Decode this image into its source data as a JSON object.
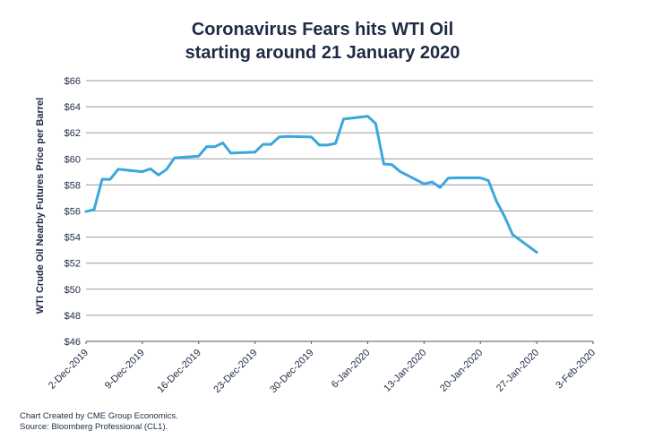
{
  "chart_data": {
    "type": "line",
    "title_line1": "Coronavirus Fears hits WTI Oil",
    "title_line2": "starting around 21 January 2020",
    "ylabel": "WTI Crude Oil Nearby Futures Price per Barrel",
    "xlabel": "",
    "ylim": [
      46,
      66
    ],
    "y_ticks": [
      "$46",
      "$48",
      "$50",
      "$52",
      "$54",
      "$56",
      "$58",
      "$60",
      "$62",
      "$64",
      "$66"
    ],
    "x_range": [
      "2019-12-02",
      "2020-02-03"
    ],
    "x_ticks": [
      {
        "date": "2019-12-02",
        "label": "2-Dec-2019"
      },
      {
        "date": "2019-12-09",
        "label": "9-Dec-2019"
      },
      {
        "date": "2019-12-16",
        "label": "16-Dec-2019"
      },
      {
        "date": "2019-12-23",
        "label": "23-Dec-2019"
      },
      {
        "date": "2019-12-30",
        "label": "30-Dec-2019"
      },
      {
        "date": "2020-01-06",
        "label": "6-Jan-2020"
      },
      {
        "date": "2020-01-13",
        "label": "13-Jan-2020"
      },
      {
        "date": "2020-01-20",
        "label": "20-Jan-2020"
      },
      {
        "date": "2020-01-27",
        "label": "27-Jan-2020"
      },
      {
        "date": "2020-02-03",
        "label": "3-Feb-2020"
      }
    ],
    "grid": "horizontal",
    "series": [
      {
        "color": "#3aa7dd",
        "points": [
          {
            "x": "2019-12-02",
            "y": 55.96
          },
          {
            "x": "2019-12-03",
            "y": 56.1
          },
          {
            "x": "2019-12-04",
            "y": 58.43
          },
          {
            "x": "2019-12-05",
            "y": 58.43
          },
          {
            "x": "2019-12-06",
            "y": 59.2
          },
          {
            "x": "2019-12-09",
            "y": 59.02
          },
          {
            "x": "2019-12-10",
            "y": 59.24
          },
          {
            "x": "2019-12-11",
            "y": 58.76
          },
          {
            "x": "2019-12-12",
            "y": 59.18
          },
          {
            "x": "2019-12-13",
            "y": 60.07
          },
          {
            "x": "2019-12-16",
            "y": 60.21
          },
          {
            "x": "2019-12-17",
            "y": 60.94
          },
          {
            "x": "2019-12-18",
            "y": 60.93
          },
          {
            "x": "2019-12-19",
            "y": 61.22
          },
          {
            "x": "2019-12-20",
            "y": 60.44
          },
          {
            "x": "2019-12-23",
            "y": 60.52
          },
          {
            "x": "2019-12-24",
            "y": 61.11
          },
          {
            "x": "2019-12-25",
            "y": 61.11
          },
          {
            "x": "2019-12-26",
            "y": 61.68
          },
          {
            "x": "2019-12-27",
            "y": 61.72
          },
          {
            "x": "2019-12-30",
            "y": 61.68
          },
          {
            "x": "2019-12-31",
            "y": 61.06
          },
          {
            "x": "2020-01-01",
            "y": 61.06
          },
          {
            "x": "2020-01-02",
            "y": 61.18
          },
          {
            "x": "2020-01-03",
            "y": 63.05
          },
          {
            "x": "2020-01-06",
            "y": 63.27
          },
          {
            "x": "2020-01-07",
            "y": 62.7
          },
          {
            "x": "2020-01-08",
            "y": 59.61
          },
          {
            "x": "2020-01-09",
            "y": 59.56
          },
          {
            "x": "2020-01-10",
            "y": 59.04
          },
          {
            "x": "2020-01-13",
            "y": 58.08
          },
          {
            "x": "2020-01-14",
            "y": 58.23
          },
          {
            "x": "2020-01-15",
            "y": 57.81
          },
          {
            "x": "2020-01-16",
            "y": 58.52
          },
          {
            "x": "2020-01-17",
            "y": 58.54
          },
          {
            "x": "2020-01-20",
            "y": 58.54
          },
          {
            "x": "2020-01-21",
            "y": 58.34
          },
          {
            "x": "2020-01-22",
            "y": 56.74
          },
          {
            "x": "2020-01-23",
            "y": 55.59
          },
          {
            "x": "2020-01-24",
            "y": 54.19
          },
          {
            "x": "2020-01-27",
            "y": 52.83
          }
        ]
      }
    ]
  },
  "footer": {
    "line1": "Chart Created by CME Group Economics.",
    "line2": "Source:  Bloomberg Professional (CL1)."
  }
}
